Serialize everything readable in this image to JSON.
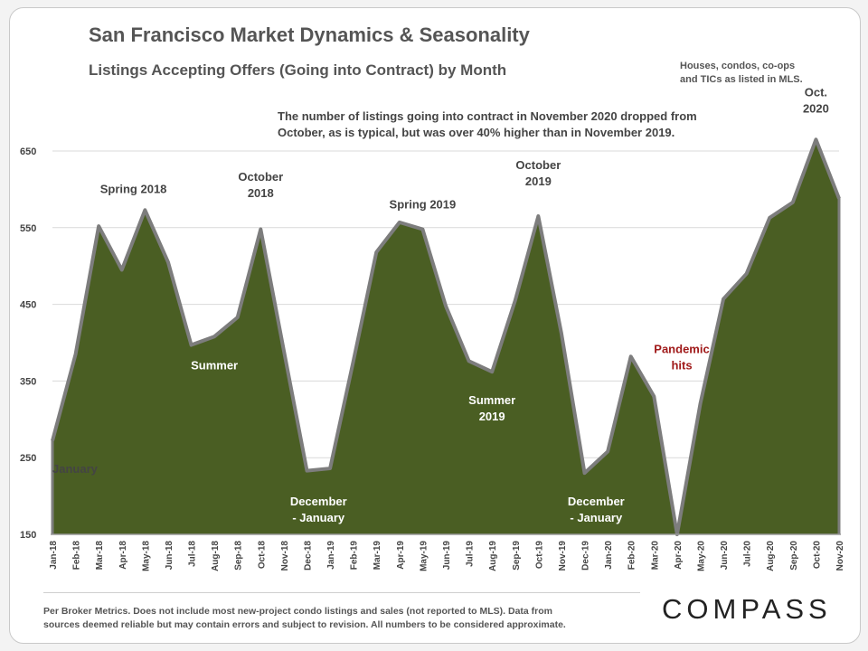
{
  "page": {
    "title": "San Francisco Market Dynamics & Seasonality",
    "subtitle": "Listings Accepting Offers (Going into Contract) by Month",
    "scope_note_line1": "Houses, condos, co-ops",
    "scope_note_line2": "and TICs as listed in MLS.",
    "callout_line1": "The number of listings going into contract in November 2020 dropped from",
    "callout_line2": "October, as is typical, but was over 40% higher than in November 2019.",
    "footnote_line1": "Per Broker Metrics. Does not include most new-project condo listings and sales (not reported to MLS). Data from",
    "footnote_line2": "sources deemed reliable but may contain errors and subject to revision.  All numbers to be considered approximate.",
    "logo": "COMPASS"
  },
  "colors": {
    "area_fill": "#4a5e23",
    "area_stroke": "#7d7d7d",
    "grid": "#d9d9d9",
    "pandemic_label": "#a01a1a",
    "text": "#555555"
  },
  "chart_data": {
    "type": "area",
    "title": "San Francisco Market Dynamics & Seasonality",
    "subtitle": "Listings Accepting Offers (Going into Contract) by Month",
    "ylim": [
      150,
      700
    ],
    "y_ticks": [
      150,
      250,
      350,
      450,
      550,
      650
    ],
    "grid": "horizontal",
    "categories": [
      "Jan-18",
      "Feb-18",
      "Mar-18",
      "Apr-18",
      "May-18",
      "Jun-18",
      "Jul-18",
      "Aug-18",
      "Sep-18",
      "Oct-18",
      "Nov-18",
      "Dec-18",
      "Jan-19",
      "Feb-19",
      "Mar-19",
      "Apr-19",
      "May-19",
      "Jun-19",
      "Jul-19",
      "Aug-19",
      "Sep-19",
      "Oct-19",
      "Nov-19",
      "Dec-19",
      "Jan-20",
      "Feb-20",
      "Mar-20",
      "Apr-20",
      "May-20",
      "Jun-20",
      "Jul-20",
      "Aug-20",
      "Sep-20",
      "Oct-20",
      "Nov-20"
    ],
    "series": [
      {
        "values": [
          272,
          385,
          552,
          495,
          573,
          505,
          397,
          408,
          433,
          548,
          390,
          233,
          236,
          375,
          518,
          557,
          548,
          448,
          376,
          362,
          455,
          565,
          412,
          230,
          258,
          382,
          330,
          150,
          320,
          457,
          490,
          563,
          583,
          665,
          588
        ]
      }
    ],
    "annotations": [
      {
        "index": 0,
        "lines": [
          "January"
        ],
        "offset": "below",
        "value": 230,
        "color": "#444444"
      },
      {
        "index": 3.5,
        "lines": [
          "Spring 2018"
        ],
        "offset": "above",
        "value": 595,
        "color": "#444444"
      },
      {
        "index": 9,
        "lines": [
          "October",
          "2018"
        ],
        "offset": "above",
        "value": 590,
        "color": "#444444"
      },
      {
        "index": 7,
        "lines": [
          "Summer"
        ],
        "offset": "below",
        "value": 365,
        "color": "#ffffff"
      },
      {
        "index": 11.5,
        "lines": [
          "December",
          "- January"
        ],
        "offset": "below",
        "value": 188,
        "color": "#ffffff"
      },
      {
        "index": 16,
        "lines": [
          "Spring 2019"
        ],
        "offset": "above",
        "value": 575,
        "color": "#444444"
      },
      {
        "index": 19,
        "lines": [
          "Summer",
          "2019"
        ],
        "offset": "below",
        "value": 320,
        "color": "#ffffff"
      },
      {
        "index": 21,
        "lines": [
          "October",
          "2019"
        ],
        "offset": "above",
        "value": 605,
        "color": "#444444"
      },
      {
        "index": 23.5,
        "lines": [
          "December",
          "- January"
        ],
        "offset": "below",
        "value": 188,
        "color": "#ffffff"
      },
      {
        "index": 27.2,
        "lines": [
          "Pandemic",
          "hits"
        ],
        "offset": "above",
        "value": 365,
        "color": "#a01a1a"
      },
      {
        "index": 33,
        "lines": [
          "Oct.",
          "2020"
        ],
        "offset": "above",
        "value": 700,
        "color": "#444444"
      }
    ]
  }
}
